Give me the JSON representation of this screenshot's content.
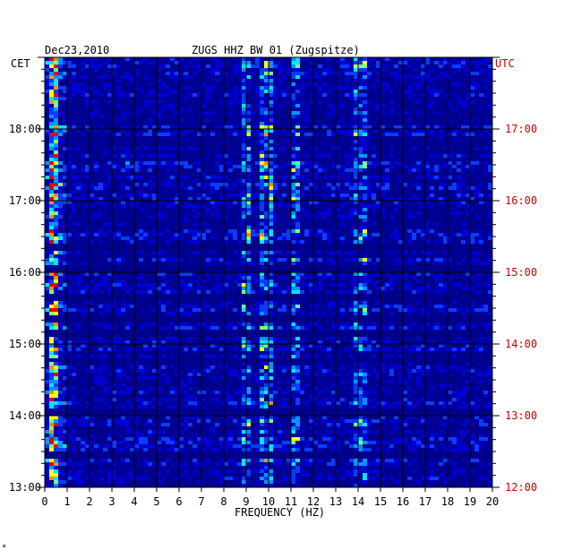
{
  "header": {
    "date": "Dec23,2010",
    "station": "ZUGS HHZ BW 01 (Zugspitze)",
    "left_zone": "CET",
    "right_zone": "UTC"
  },
  "footer": {
    "mark": "*"
  },
  "colors": {
    "left_labels": "#000000",
    "right_labels": "#cc0000",
    "background": "#00008b",
    "palette": [
      "#00006e",
      "#00009a",
      "#0000d2",
      "#0a3cff",
      "#0096ff",
      "#00e6ff",
      "#78ff82",
      "#ffff00",
      "#ff8c00",
      "#e60000"
    ]
  },
  "chart_data": {
    "type": "heatmap",
    "title": "ZUGS HHZ BW 01 (Zugspitze)",
    "xlabel": "FREQUENCY (HZ)",
    "xlim": [
      0,
      20
    ],
    "x_ticks": [
      "0",
      "1",
      "2",
      "3",
      "4",
      "5",
      "6",
      "7",
      "8",
      "9",
      "10",
      "11",
      "12",
      "13",
      "14",
      "15",
      "16",
      "17",
      "18",
      "19",
      "20"
    ],
    "y_left_label": "CET",
    "y_left_ticks": [
      "13:00",
      "14:00",
      "15:00",
      "16:00",
      "17:00",
      "18:00"
    ],
    "y_right_label": "UTC",
    "y_right_ticks": [
      "12:00",
      "13:00",
      "14:00",
      "15:00",
      "16:00",
      "17:00"
    ],
    "y_range_hours_cet": [
      13.0,
      19.0
    ],
    "grid": true,
    "features": [
      {
        "freq_hz": [
          0.2,
          0.7
        ],
        "level": 0.8
      },
      {
        "freq_hz": [
          8.9,
          9.1
        ],
        "level": 0.45
      },
      {
        "freq_hz": [
          9.7,
          10.2
        ],
        "level": 0.5
      },
      {
        "freq_hz": [
          11.0,
          11.4
        ],
        "level": 0.45
      },
      {
        "freq_hz": [
          13.8,
          14.3
        ],
        "level": 0.4
      }
    ],
    "dark_bands_cet": [
      16.35,
      16.05,
      15.65,
      15.35,
      15.15,
      14.78,
      14.05,
      13.45
    ],
    "seed": 12345
  }
}
